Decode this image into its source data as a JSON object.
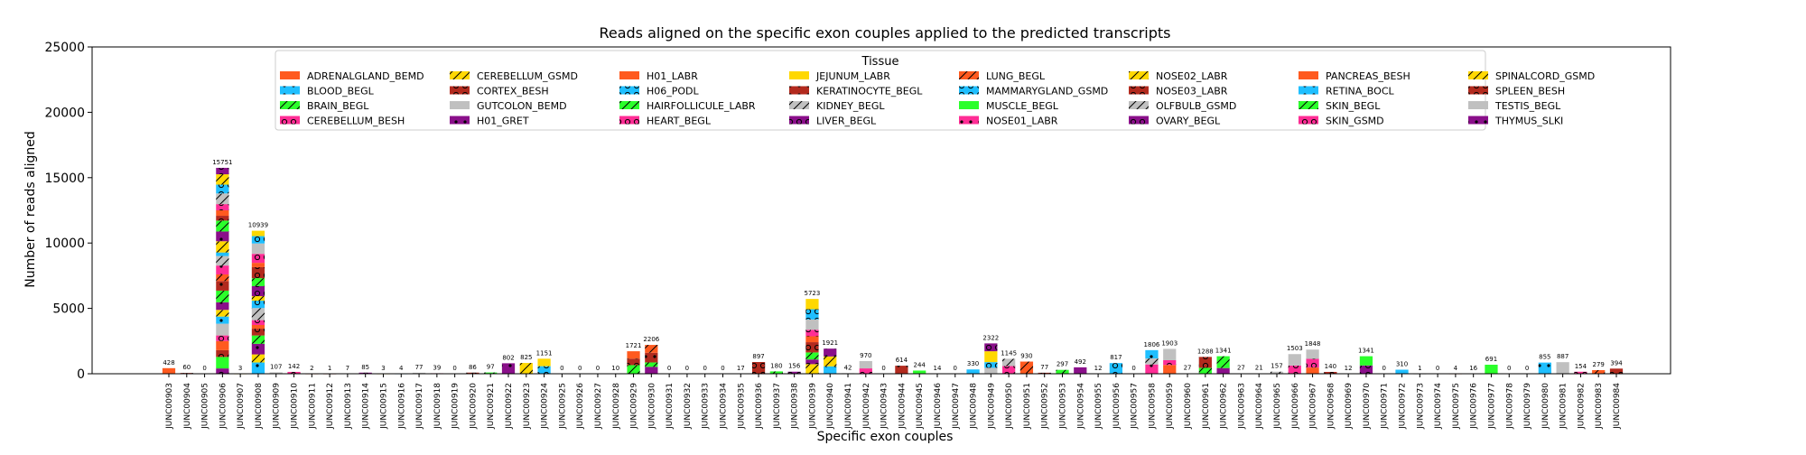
{
  "chart_data": {
    "type": "bar",
    "stacked": true,
    "title": "Reads aligned on the specific exon couples applied to the predicted transcripts",
    "xlabel": "Specific exon couples",
    "ylabel": "Number of reads aligned",
    "ylim": [
      0,
      25000
    ],
    "yticks": [
      0,
      5000,
      10000,
      15000,
      20000,
      25000
    ],
    "grid": false,
    "legend": {
      "title": "Tissue",
      "placement": "upper-center",
      "columns": 8,
      "entries": [
        {
          "name": "ADRENALGLAND_BEMD",
          "color": "#ff5a1f",
          "pattern": "solid"
        },
        {
          "name": "BLOOD_BEGL",
          "color": "#1fbfff",
          "pattern": "dot"
        },
        {
          "name": "BRAIN_BEGL",
          "color": "#2bff2b",
          "pattern": "slash"
        },
        {
          "name": "CEREBELLUM_BESH",
          "color": "#ff2d95",
          "pattern": "ring"
        },
        {
          "name": "CEREBELLUM_GSMD",
          "color": "#ffd800",
          "pattern": "slash"
        },
        {
          "name": "CORTEX_BESH",
          "color": "#b22a1e",
          "pattern": "ring"
        },
        {
          "name": "GUTCOLON_BEMD",
          "color": "#c0c0c0",
          "pattern": "solid"
        },
        {
          "name": "H01_GRET",
          "color": "#8a0f8a",
          "pattern": "dot"
        },
        {
          "name": "H01_LABR",
          "color": "#ff5a1f",
          "pattern": "solid"
        },
        {
          "name": "H06_PODL",
          "color": "#1fbfff",
          "pattern": "ring"
        },
        {
          "name": "HAIRFOLLICULE_LABR",
          "color": "#2bff2b",
          "pattern": "slash"
        },
        {
          "name": "HEART_BEGL",
          "color": "#ff2d95",
          "pattern": "ring"
        },
        {
          "name": "JEJUNUM_LABR",
          "color": "#ffd800",
          "pattern": "solid"
        },
        {
          "name": "KERATINOCYTE_BEGL",
          "color": "#b22a1e",
          "pattern": "dot"
        },
        {
          "name": "KIDNEY_BEGL",
          "color": "#c0c0c0",
          "pattern": "slash"
        },
        {
          "name": "LIVER_BEGL",
          "color": "#8a0f8a",
          "pattern": "ring"
        },
        {
          "name": "LUNG_BEGL",
          "color": "#ff5a1f",
          "pattern": "slash"
        },
        {
          "name": "MAMMARYGLAND_GSMD",
          "color": "#1fbfff",
          "pattern": "ring"
        },
        {
          "name": "MUSCLE_BEGL",
          "color": "#2bff2b",
          "pattern": "solid"
        },
        {
          "name": "NOSE01_LABR",
          "color": "#ff2d95",
          "pattern": "dot"
        },
        {
          "name": "NOSE02_LABR",
          "color": "#ffd800",
          "pattern": "slash"
        },
        {
          "name": "NOSE03_LABR",
          "color": "#b22a1e",
          "pattern": "ring"
        },
        {
          "name": "OLFBULB_GSMD",
          "color": "#c0c0c0",
          "pattern": "slash"
        },
        {
          "name": "OVARY_BEGL",
          "color": "#8a0f8a",
          "pattern": "ring"
        },
        {
          "name": "PANCREAS_BESH",
          "color": "#ff5a1f",
          "pattern": "solid"
        },
        {
          "name": "RETINA_BOCL",
          "color": "#1fbfff",
          "pattern": "dot"
        },
        {
          "name": "SKIN_BEGL",
          "color": "#2bff2b",
          "pattern": "slash"
        },
        {
          "name": "SKIN_GSMD",
          "color": "#ff2d95",
          "pattern": "ring"
        },
        {
          "name": "SPINALCORD_GSMD",
          "color": "#ffd800",
          "pattern": "slash"
        },
        {
          "name": "SPLEEN_BESH",
          "color": "#b22a1e",
          "pattern": "ring"
        },
        {
          "name": "TESTIS_BEGL",
          "color": "#c0c0c0",
          "pattern": "solid"
        },
        {
          "name": "THYMUS_SLKI",
          "color": "#8a0f8a",
          "pattern": "dot"
        }
      ]
    },
    "categories": [
      "JUNC00903",
      "JUNC00904",
      "JUNC00905",
      "JUNC00906",
      "JUNC00907",
      "JUNC00908",
      "JUNC00909",
      "JUNC00910",
      "JUNC00911",
      "JUNC00912",
      "JUNC00913",
      "JUNC00914",
      "JUNC00915",
      "JUNC00916",
      "JUNC00917",
      "JUNC00918",
      "JUNC00919",
      "JUNC00920",
      "JUNC00921",
      "JUNC00922",
      "JUNC00923",
      "JUNC00924",
      "JUNC00925",
      "JUNC00926",
      "JUNC00927",
      "JUNC00928",
      "JUNC00929",
      "JUNC00930",
      "JUNC00931",
      "JUNC00932",
      "JUNC00933",
      "JUNC00934",
      "JUNC00935",
      "JUNC00936",
      "JUNC00937",
      "JUNC00938",
      "JUNC00939",
      "JUNC00940",
      "JUNC00941",
      "JUNC00942",
      "JUNC00943",
      "JUNC00944",
      "JUNC00945",
      "JUNC00946",
      "JUNC00947",
      "JUNC00948",
      "JUNC00949",
      "JUNC00950",
      "JUNC00951",
      "JUNC00952",
      "JUNC00953",
      "JUNC00954",
      "JUNC00955",
      "JUNC00956",
      "JUNC00957",
      "JUNC00958",
      "JUNC00959",
      "JUNC00960",
      "JUNC00961",
      "JUNC00962",
      "JUNC00963",
      "JUNC00964",
      "JUNC00965",
      "JUNC00966",
      "JUNC00967",
      "JUNC00968",
      "JUNC00969",
      "JUNC00970",
      "JUNC00971",
      "JUNC00972",
      "JUNC00973",
      "JUNC00974",
      "JUNC00975",
      "JUNC00976",
      "JUNC00977",
      "JUNC00978",
      "JUNC00979",
      "JUNC00980",
      "JUNC00981",
      "JUNC00982",
      "JUNC00983",
      "JUNC00984"
    ],
    "totals": [
      428,
      60,
      0,
      15751,
      3,
      10939,
      107,
      142,
      2,
      1,
      7,
      85,
      3,
      4,
      77,
      39,
      0,
      86,
      97,
      802,
      825,
      1151,
      0,
      0,
      0,
      10,
      1721,
      2206,
      0,
      0,
      0,
      0,
      17,
      897,
      180,
      156,
      5723,
      1921,
      42,
      970,
      0,
      614,
      244,
      14,
      0,
      330,
      2322,
      1145,
      930,
      77,
      297,
      492,
      12,
      817,
      0,
      1806,
      1903,
      27,
      1288,
      1341,
      27,
      21,
      157,
      1503,
      1848,
      140,
      12,
      1341,
      0,
      310,
      1,
      0,
      4,
      16,
      691,
      0,
      0,
      855,
      887,
      154,
      279,
      394
    ],
    "labels": [
      "428",
      "60",
      "0",
      "15751",
      "3",
      "10939",
      "107",
      "142",
      "2",
      "1",
      "7",
      "85",
      "3",
      "4",
      "77",
      "39",
      "0",
      "86",
      "97",
      "802",
      "825",
      "1151",
      "0",
      "0",
      "0",
      "10",
      "1721",
      "2206",
      "0",
      "0",
      "0",
      "0",
      "17",
      "897",
      "180",
      "156",
      "5723",
      "1921",
      "42",
      "970",
      "0",
      "614",
      "244",
      "14",
      "0",
      "330",
      "2322",
      "1145",
      "930",
      "77",
      "297",
      "492",
      "12",
      "817",
      "0",
      "1806",
      "1903",
      "27",
      "1288",
      "1341",
      "27",
      "21",
      "157",
      "1503",
      "1848",
      "140",
      "12",
      "1341",
      "0",
      "310",
      "1",
      "0",
      "4",
      "16",
      "691",
      "0",
      "0",
      "855",
      "887",
      "154",
      "279",
      "394"
    ]
  }
}
